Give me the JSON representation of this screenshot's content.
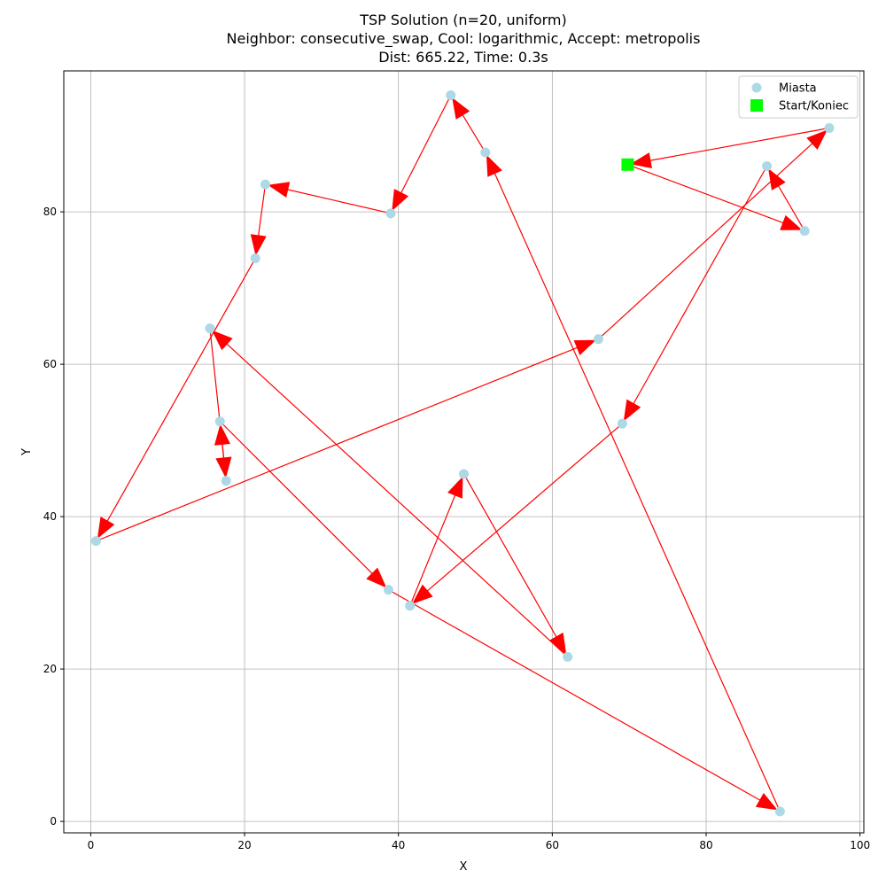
{
  "chart_data": {
    "type": "scatter",
    "title": [
      "TSP Solution (n=20, uniform)",
      "Neighbor: consecutive_swap, Cool: logarithmic, Accept: metropolis",
      "Dist: 665.22, Time: 0.3s"
    ],
    "xlabel": "X",
    "ylabel": "Y",
    "xlim": [
      -3.5,
      100.5
    ],
    "ylim": [
      -1.5,
      98.5
    ],
    "xticks": [
      0,
      20,
      40,
      60,
      80,
      100
    ],
    "yticks": [
      0,
      20,
      40,
      60,
      80
    ],
    "grid": true,
    "legend": {
      "placement": "top-right",
      "entries": [
        {
          "label": "Miasta",
          "marker": "circle",
          "color": "#add8e6"
        },
        {
          "label": "Start/Koniec",
          "marker": "square",
          "color": "#00ff00"
        }
      ]
    },
    "colors": {
      "city": "#add8e6",
      "start": "#00ff00",
      "route": "#ff0000",
      "grid": "#b0b0b0"
    },
    "cities": [
      {
        "x": 69.8,
        "y": 86.2
      },
      {
        "x": 92.8,
        "y": 77.5
      },
      {
        "x": 87.9,
        "y": 86.0
      },
      {
        "x": 69.1,
        "y": 52.2
      },
      {
        "x": 41.5,
        "y": 28.3
      },
      {
        "x": 48.5,
        "y": 45.6
      },
      {
        "x": 62.0,
        "y": 21.6
      },
      {
        "x": 15.5,
        "y": 64.7
      },
      {
        "x": 21.4,
        "y": 73.9
      },
      {
        "x": 22.7,
        "y": 83.6
      },
      {
        "x": 39.0,
        "y": 79.8
      },
      {
        "x": 46.8,
        "y": 95.3
      },
      {
        "x": 51.3,
        "y": 87.8
      },
      {
        "x": 89.6,
        "y": 1.3
      },
      {
        "x": 38.7,
        "y": 30.4
      },
      {
        "x": 16.8,
        "y": 52.5
      },
      {
        "x": 17.6,
        "y": 44.7
      },
      {
        "x": 0.7,
        "y": 36.8
      },
      {
        "x": 66.0,
        "y": 63.3
      },
      {
        "x": 96.0,
        "y": 91.0
      }
    ],
    "route": [
      {
        "x": 69.8,
        "y": 86.2
      },
      {
        "x": 92.8,
        "y": 77.5
      },
      {
        "x": 87.9,
        "y": 86.0
      },
      {
        "x": 69.1,
        "y": 52.2
      },
      {
        "x": 41.5,
        "y": 28.3
      },
      {
        "x": 48.5,
        "y": 45.6
      },
      {
        "x": 62.0,
        "y": 21.6
      },
      {
        "x": 15.5,
        "y": 64.7
      },
      {
        "x": 17.6,
        "y": 44.7
      },
      {
        "x": 16.8,
        "y": 52.5
      },
      {
        "x": 38.7,
        "y": 30.4
      },
      {
        "x": 89.6,
        "y": 1.3
      },
      {
        "x": 51.3,
        "y": 87.8
      },
      {
        "x": 46.8,
        "y": 95.3
      },
      {
        "x": 39.0,
        "y": 79.8
      },
      {
        "x": 22.7,
        "y": 83.6
      },
      {
        "x": 21.4,
        "y": 73.9
      },
      {
        "x": 0.7,
        "y": 36.8
      },
      {
        "x": 66.0,
        "y": 63.3
      },
      {
        "x": 96.0,
        "y": 91.0
      },
      {
        "x": 69.8,
        "y": 86.2
      }
    ],
    "start": {
      "x": 69.8,
      "y": 86.2
    }
  }
}
